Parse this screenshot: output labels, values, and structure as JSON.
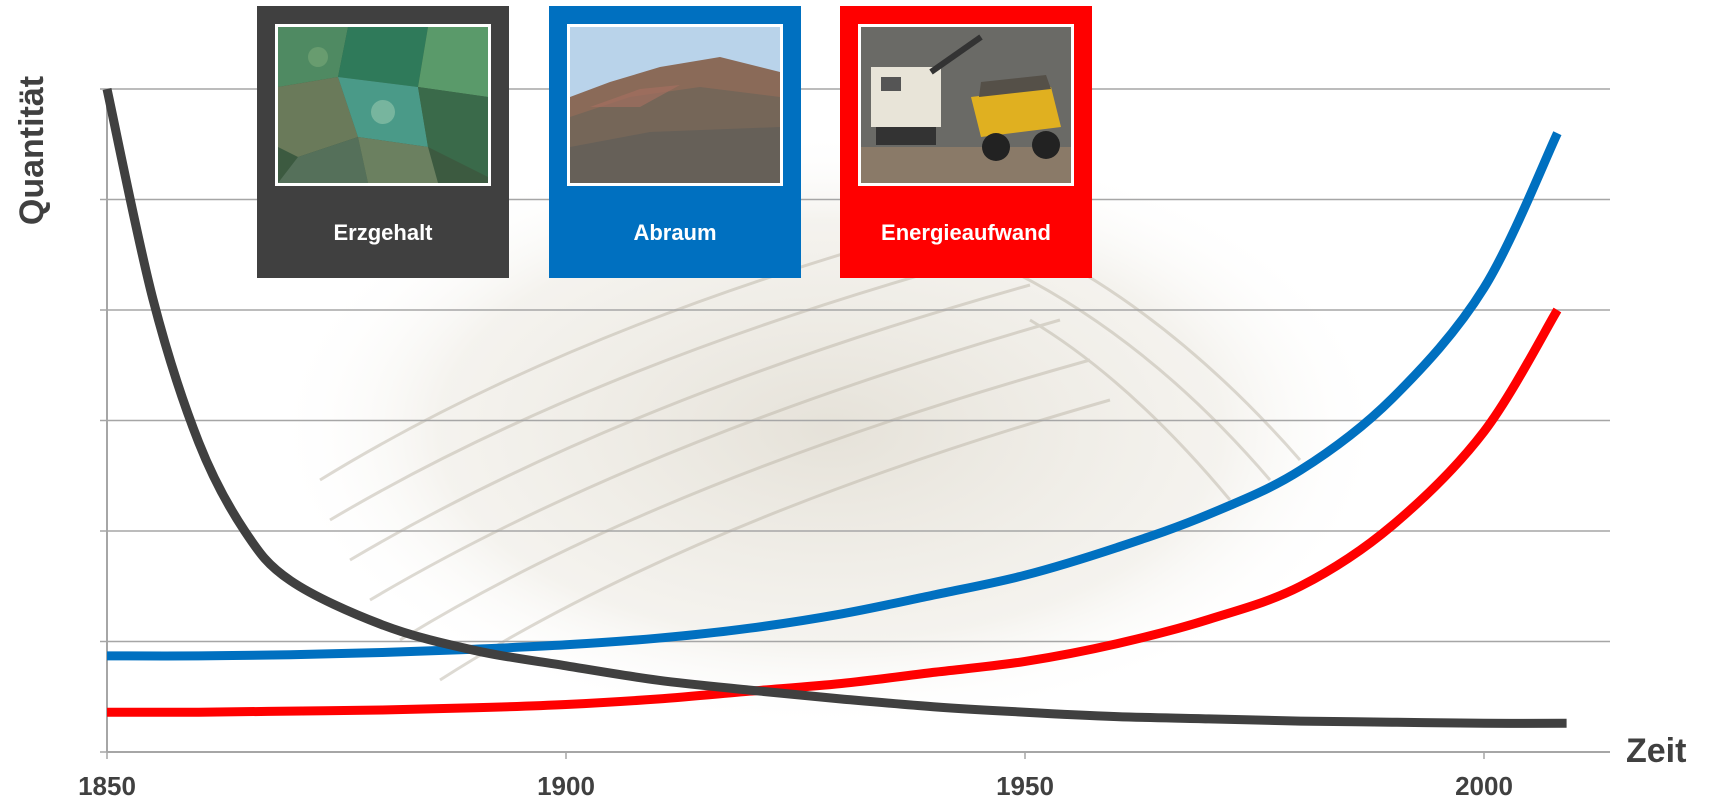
{
  "chart_data": {
    "type": "line",
    "xlabel": "Zeit",
    "ylabel": "Quantität",
    "xticks": [
      "1850",
      "1900",
      "1950",
      "2000"
    ],
    "xlim": [
      1850,
      2020
    ],
    "ylim": [
      0,
      6
    ],
    "grid": true,
    "legend_position": "top",
    "series": [
      {
        "name": "Erzgehalt",
        "color": "#404040",
        "x": [
          1850,
          1855,
          1860,
          1865,
          1870,
          1880,
          1890,
          1900,
          1910,
          1920,
          1930,
          1940,
          1950,
          1960,
          1970,
          1980,
          1990,
          2000,
          2009
        ],
        "y": [
          6.0,
          4.1,
          2.8,
          2.0,
          1.55,
          1.15,
          0.92,
          0.78,
          0.65,
          0.56,
          0.48,
          0.41,
          0.36,
          0.32,
          0.3,
          0.28,
          0.27,
          0.26,
          0.26
        ]
      },
      {
        "name": "Abraum",
        "color": "#0070c0",
        "x": [
          1850,
          1860,
          1870,
          1880,
          1890,
          1900,
          1910,
          1920,
          1930,
          1940,
          1950,
          1960,
          1970,
          1980,
          1990,
          2000,
          2008
        ],
        "y": [
          0.87,
          0.87,
          0.88,
          0.9,
          0.93,
          0.97,
          1.03,
          1.12,
          1.25,
          1.42,
          1.6,
          1.85,
          2.15,
          2.55,
          3.2,
          4.2,
          5.6
        ]
      },
      {
        "name": "Energieaufwand",
        "color": "#ff0000",
        "x": [
          1850,
          1860,
          1870,
          1880,
          1890,
          1900,
          1910,
          1920,
          1930,
          1940,
          1950,
          1960,
          1970,
          1980,
          1990,
          2000,
          2008
        ],
        "y": [
          0.36,
          0.36,
          0.37,
          0.38,
          0.4,
          0.43,
          0.48,
          0.55,
          0.62,
          0.72,
          0.82,
          0.98,
          1.2,
          1.5,
          2.05,
          2.9,
          4.0
        ]
      }
    ]
  },
  "legend": {
    "erzgehalt": "Erzgehalt",
    "abraum": "Abraum",
    "energieaufwand": "Energieaufwand"
  }
}
